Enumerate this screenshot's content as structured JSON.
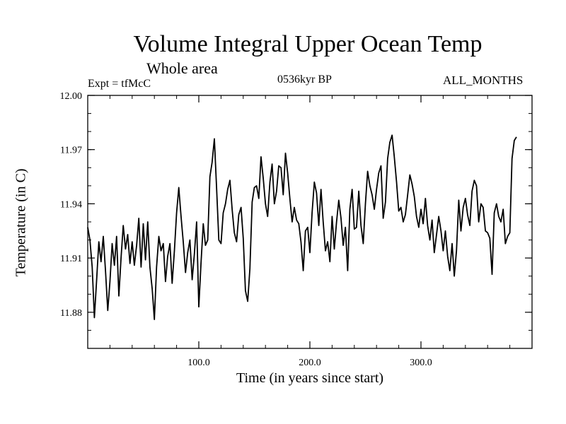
{
  "chart_data": {
    "type": "line",
    "title": "Volume Integral Upper Ocean Temp",
    "subtitle": "Whole area",
    "experiment": "Expt = tfMcC",
    "period": "0536kyr BP",
    "months": "ALL_MONTHS",
    "xlabel": "Time (in years since start)",
    "ylabel": "Temperature (in C)",
    "xlim": [
      0,
      400
    ],
    "ylim": [
      11.86,
      12.0
    ],
    "x_ticks": [
      100,
      200,
      300
    ],
    "x_tick_labels": [
      "100.0",
      "200.0",
      "300.0"
    ],
    "y_ticks": [
      11.88,
      11.91,
      11.94,
      11.97,
      12.0
    ],
    "y_tick_labels": [
      "11.88",
      "11.91",
      "11.94",
      "11.97",
      "12.00"
    ],
    "grid": false,
    "line_color": "#000000",
    "series": [
      {
        "x_start": 0,
        "x_step": 2,
        "values": [
          11.927,
          11.92,
          11.905,
          11.877,
          11.898,
          11.919,
          11.908,
          11.922,
          11.903,
          11.881,
          11.897,
          11.918,
          11.906,
          11.922,
          11.889,
          11.91,
          11.928,
          11.915,
          11.923,
          11.907,
          11.919,
          11.906,
          11.917,
          11.932,
          11.905,
          11.929,
          11.909,
          11.93,
          11.905,
          11.893,
          11.876,
          11.905,
          11.922,
          11.914,
          11.918,
          11.897,
          11.911,
          11.918,
          11.896,
          11.914,
          11.935,
          11.949,
          11.933,
          11.919,
          11.902,
          11.913,
          11.92,
          11.898,
          11.912,
          11.93,
          11.883,
          11.907,
          11.929,
          11.917,
          11.92,
          11.955,
          11.963,
          11.976,
          11.949,
          11.92,
          11.918,
          11.935,
          11.94,
          11.948,
          11.953,
          11.937,
          11.924,
          11.919,
          11.934,
          11.938,
          11.921,
          11.892,
          11.886,
          11.904,
          11.941,
          11.949,
          11.95,
          11.943,
          11.966,
          11.954,
          11.94,
          11.933,
          11.952,
          11.962,
          11.94,
          11.947,
          11.961,
          11.96,
          11.945,
          11.968,
          11.957,
          11.943,
          11.93,
          11.938,
          11.931,
          11.929,
          11.919,
          11.903,
          11.925,
          11.927,
          11.913,
          11.935,
          11.952,
          11.946,
          11.928,
          11.948,
          11.93,
          11.914,
          11.919,
          11.908,
          11.933,
          11.915,
          11.93,
          11.942,
          11.932,
          11.917,
          11.927,
          11.903,
          11.937,
          11.948,
          11.926,
          11.927,
          11.947,
          11.928,
          11.918,
          11.94,
          11.958,
          11.95,
          11.945,
          11.937,
          11.948,
          11.957,
          11.961,
          11.932,
          11.941,
          11.965,
          11.974,
          11.978,
          11.966,
          11.952,
          11.936,
          11.938,
          11.93,
          11.934,
          11.945,
          11.956,
          11.951,
          11.944,
          11.933,
          11.927,
          11.937,
          11.929,
          11.943,
          11.928,
          11.92,
          11.931,
          11.913,
          11.923,
          11.933,
          11.925,
          11.914,
          11.925,
          11.911,
          11.903,
          11.918,
          11.9,
          11.914,
          11.942,
          11.925,
          11.938,
          11.943,
          11.934,
          11.928,
          11.947,
          11.953,
          11.95,
          11.93,
          11.94,
          11.938,
          11.925,
          11.924,
          11.921,
          11.901,
          11.935,
          11.94,
          11.933,
          11.93,
          11.937,
          11.918,
          11.922,
          11.924,
          11.965,
          11.975,
          11.977
        ]
      }
    ]
  }
}
